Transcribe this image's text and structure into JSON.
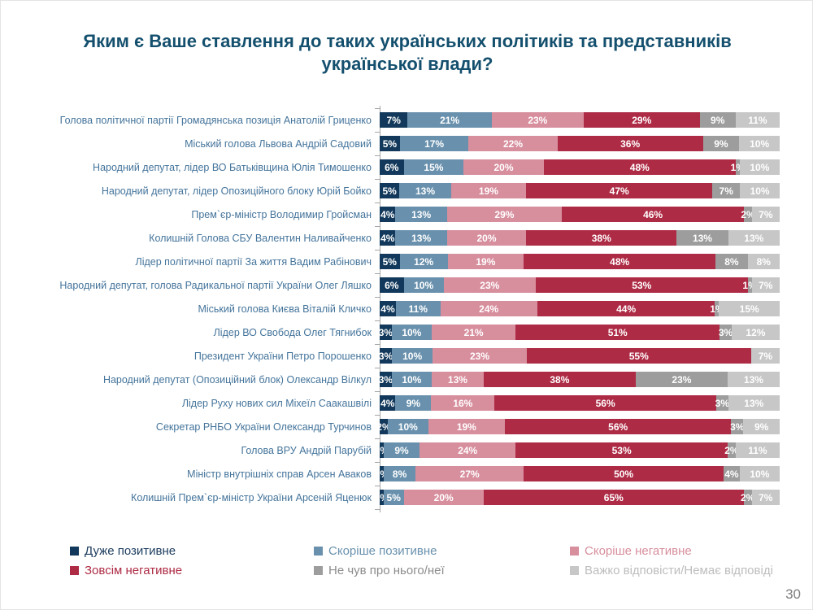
{
  "title": "Яким є Ваше ставлення до таких українських політиків та представників української влади?",
  "page": {
    "number": "30"
  },
  "legend": [
    {
      "label": "Дуже позитивне",
      "color": "#12395b",
      "text_color": "#1c3c5e"
    },
    {
      "label": "Скоріше позитивне",
      "color": "#6991ad",
      "text_color": "#6991ad"
    },
    {
      "label": "Скоріше негативне",
      "color": "#d78e9d",
      "text_color": "#d78e9d"
    },
    {
      "label": "Зовсім негативне",
      "color": "#ae2b45",
      "text_color": "#ae2b45"
    },
    {
      "label": "Не чув про нього/неї",
      "color": "#9d9d9d",
      "text_color": "#8c8c8c"
    },
    {
      "label": "Важко відповісти/Немає відповіді",
      "color": "#c7c7c7",
      "text_color": "#bdbdbd"
    }
  ],
  "chart_data": {
    "type": "bar",
    "orientation": "horizontal",
    "stacked": true,
    "unit": "%",
    "axis_range": [
      0,
      100
    ],
    "legend_position": "bottom",
    "series_names": [
      "Дуже позитивне",
      "Скоріше позитивне",
      "Скоріше негативне",
      "Зовсім негативне",
      "Не чув про нього/неї",
      "Важко відповісти/Немає відповіді"
    ],
    "categories": [
      "Голова політичної партії Громадянська позиція Анатолій Гриценко",
      "Міський голова Львова Андрій Садовий",
      "Народний депутат, лідер ВО Батьківщина Юлія Тимошенко",
      "Народний депутат, лідер Опозиційного блоку Юрій Бойко",
      "Прем`єр-міністр Володимир Гройсман",
      "Колишній Голова СБУ Валентин Наливайченко",
      "Лідер політичної партії За життя Вадим Рабінович",
      "Народний депутат, голова Радикальної партії України Олег Ляшко",
      "Міський голова Києва Віталій Кличко",
      "Лідер ВО Свобода Олег Тягнибок",
      "Президент України Петро Порошенко",
      "Народний депутат (Опозиційний блок) Олександр Вілкул",
      "Лідер Руху нових сил Міхеїл Саакашвілі",
      "Секретар РНБО України Олександр Турчинов",
      "Голова ВРУ Андрій Парубій",
      "Міністр внутрішніх справ Арсен Аваков",
      "Колишній Прем`єр-міністр України Арсеній Яценюк"
    ],
    "rows": [
      [
        7,
        21,
        23,
        29,
        9,
        11
      ],
      [
        5,
        17,
        22,
        36,
        9,
        10
      ],
      [
        6,
        15,
        20,
        48,
        1,
        10
      ],
      [
        5,
        13,
        19,
        47,
        7,
        10
      ],
      [
        4,
        13,
        29,
        46,
        2,
        7
      ],
      [
        4,
        13,
        20,
        38,
        13,
        13
      ],
      [
        5,
        12,
        19,
        48,
        8,
        8
      ],
      [
        6,
        10,
        23,
        53,
        1,
        7
      ],
      [
        4,
        11,
        24,
        44,
        1,
        15
      ],
      [
        3,
        10,
        21,
        51,
        3,
        12
      ],
      [
        3,
        10,
        23,
        55,
        0,
        7
      ],
      [
        3,
        10,
        13,
        38,
        23,
        13
      ],
      [
        4,
        9,
        16,
        56,
        3,
        13
      ],
      [
        2,
        10,
        19,
        56,
        3,
        9
      ],
      [
        1,
        9,
        24,
        53,
        2,
        11
      ],
      [
        1,
        8,
        27,
        50,
        4,
        10
      ],
      [
        1,
        5,
        20,
        65,
        2,
        7
      ]
    ]
  }
}
